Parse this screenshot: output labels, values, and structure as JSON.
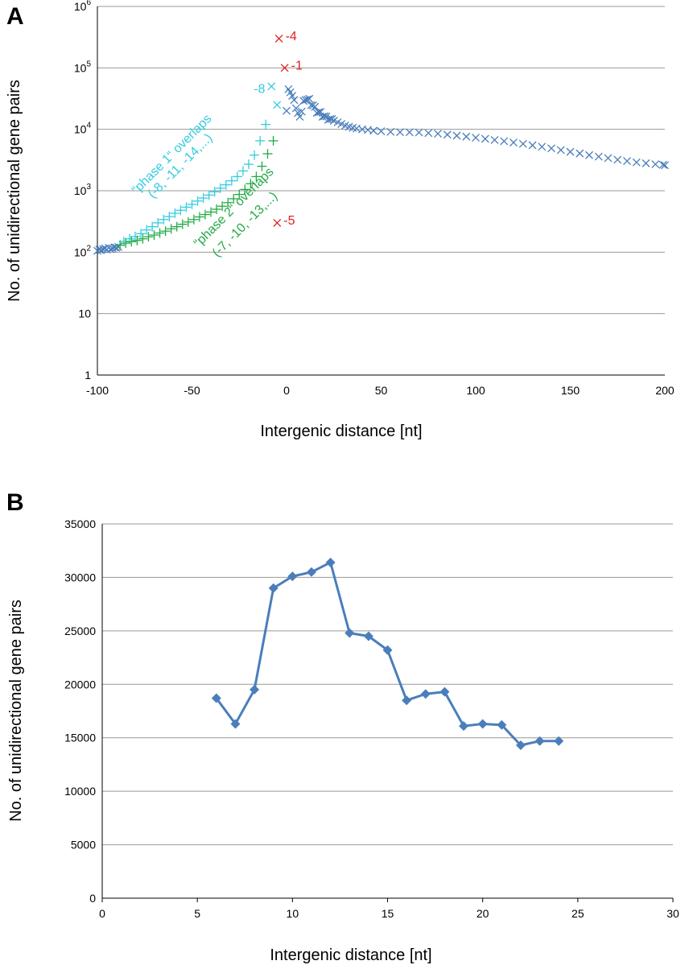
{
  "chart_data": [
    {
      "panel": "A",
      "type": "scatter",
      "y_scale": "log",
      "xlabel": "Intergenic distance [nt]",
      "ylabel": "No. of unidirectional gene pairs",
      "xlim": [
        -100,
        200
      ],
      "ylim": [
        1,
        1000000
      ],
      "x_ticks": [
        "-100",
        "-50",
        "0",
        "50",
        "100",
        "150",
        "200"
      ],
      "y_ticks": [
        {
          "base": "1",
          "exp": ""
        },
        {
          "base": "10",
          "exp": ""
        },
        {
          "base": "10",
          "exp": "2"
        },
        {
          "base": "10",
          "exp": "3"
        },
        {
          "base": "10",
          "exp": "4"
        },
        {
          "base": "10",
          "exp": "5"
        },
        {
          "base": "10",
          "exp": "6"
        }
      ],
      "colors": {
        "main": "#4a7ebb",
        "phase1": "#33ccdd",
        "phase2": "#22aa44",
        "special": "#e02020"
      },
      "series": [
        {
          "name": "main",
          "marker": "x",
          "points": [
            [
              -100,
              105
            ],
            [
              -99,
              110
            ],
            [
              -98,
              108
            ],
            [
              -97,
              112
            ],
            [
              -96,
              115
            ],
            [
              -95,
              110
            ],
            [
              -94,
              118
            ],
            [
              -93,
              112
            ],
            [
              -92,
              115
            ],
            [
              -91,
              120
            ],
            [
              -90,
              118
            ],
            [
              -89,
              122
            ],
            [
              0,
              20000
            ],
            [
              1,
              45000
            ],
            [
              2,
              40000
            ],
            [
              3,
              35000
            ],
            [
              4,
              30000
            ],
            [
              5,
              22000
            ],
            [
              6,
              18500
            ],
            [
              7,
              16000
            ],
            [
              8,
              19500
            ],
            [
              9,
              29000
            ],
            [
              10,
              30000
            ],
            [
              11,
              30500
            ],
            [
              12,
              31400
            ],
            [
              13,
              24700
            ],
            [
              14,
              24500
            ],
            [
              15,
              23200
            ],
            [
              16,
              18500
            ],
            [
              17,
              19000
            ],
            [
              18,
              19200
            ],
            [
              19,
              16000
            ],
            [
              20,
              16300
            ],
            [
              21,
              16200
            ],
            [
              22,
              14300
            ],
            [
              23,
              14700
            ],
            [
              24,
              14700
            ],
            [
              25,
              13800
            ],
            [
              27,
              13000
            ],
            [
              29,
              12200
            ],
            [
              31,
              11500
            ],
            [
              33,
              11000
            ],
            [
              35,
              10600
            ],
            [
              37,
              10300
            ],
            [
              40,
              10000
            ],
            [
              43,
              9800
            ],
            [
              46,
              9500
            ],
            [
              50,
              9300
            ],
            [
              55,
              9100
            ],
            [
              60,
              9000
            ],
            [
              65,
              8950
            ],
            [
              70,
              8900
            ],
            [
              75,
              8700
            ],
            [
              80,
              8500
            ],
            [
              85,
              8200
            ],
            [
              90,
              7900
            ],
            [
              95,
              7600
            ],
            [
              100,
              7300
            ],
            [
              105,
              7000
            ],
            [
              110,
              6700
            ],
            [
              115,
              6400
            ],
            [
              120,
              6100
            ],
            [
              125,
              5800
            ],
            [
              130,
              5500
            ],
            [
              135,
              5200
            ],
            [
              140,
              4900
            ],
            [
              145,
              4600
            ],
            [
              150,
              4300
            ],
            [
              155,
              4050
            ],
            [
              160,
              3800
            ],
            [
              165,
              3600
            ],
            [
              170,
              3400
            ],
            [
              175,
              3200
            ],
            [
              180,
              3050
            ],
            [
              185,
              2900
            ],
            [
              190,
              2800
            ],
            [
              195,
              2700
            ],
            [
              199,
              2650
            ],
            [
              200,
              2600
            ]
          ]
        },
        {
          "name": "phase1",
          "marker": "plus",
          "points": [
            [
              -86,
              150
            ],
            [
              -83,
              165
            ],
            [
              -80,
              180
            ],
            [
              -77,
              200
            ],
            [
              -74,
              230
            ],
            [
              -71,
              260
            ],
            [
              -68,
              300
            ],
            [
              -65,
              340
            ],
            [
              -62,
              380
            ],
            [
              -59,
              430
            ],
            [
              -56,
              480
            ],
            [
              -53,
              540
            ],
            [
              -50,
              600
            ],
            [
              -47,
              680
            ],
            [
              -44,
              760
            ],
            [
              -41,
              850
            ],
            [
              -38,
              960
            ],
            [
              -35,
              1100
            ],
            [
              -32,
              1250
            ],
            [
              -29,
              1450
            ],
            [
              -26,
              1700
            ],
            [
              -23,
              2100
            ],
            [
              -20,
              2700
            ],
            [
              -17,
              3800
            ],
            [
              -14,
              6500
            ],
            [
              -11,
              12000
            ]
          ]
        },
        {
          "name": "phase1-x",
          "marker": "x",
          "points": [
            [
              -8,
              50000
            ],
            [
              -5,
              25000
            ]
          ]
        },
        {
          "name": "phase2",
          "marker": "plus",
          "points": [
            [
              -88,
              130
            ],
            [
              -85,
              140
            ],
            [
              -82,
              148
            ],
            [
              -79,
              155
            ],
            [
              -76,
              165
            ],
            [
              -73,
              178
            ],
            [
              -70,
              190
            ],
            [
              -67,
              205
            ],
            [
              -64,
              220
            ],
            [
              -61,
              240
            ],
            [
              -58,
              260
            ],
            [
              -55,
              285
            ],
            [
              -52,
              310
            ],
            [
              -49,
              340
            ],
            [
              -46,
              375
            ],
            [
              -43,
              410
            ],
            [
              -40,
              450
            ],
            [
              -37,
              500
            ],
            [
              -34,
              560
            ],
            [
              -31,
              640
            ],
            [
              -28,
              740
            ],
            [
              -25,
              870
            ],
            [
              -22,
              1050
            ],
            [
              -19,
              1300
            ],
            [
              -16,
              1700
            ],
            [
              -13,
              2500
            ],
            [
              -10,
              4000
            ],
            [
              -7,
              6500
            ]
          ]
        },
        {
          "name": "special",
          "marker": "x",
          "points": [
            [
              -4,
              300000
            ],
            [
              -1,
              100000
            ],
            [
              -5,
              300
            ]
          ]
        }
      ],
      "annotations": [
        {
          "text": "-4",
          "x": -4,
          "y": 300000,
          "color": "special"
        },
        {
          "text": "-1",
          "x": -1,
          "y": 100000,
          "color": "special"
        },
        {
          "text": "-5",
          "x": -5,
          "y": 300,
          "color": "special"
        },
        {
          "text": "-8",
          "x": -8,
          "y": 50000,
          "color": "phase1"
        }
      ],
      "phase1_label": "“phase 1“ overlaps",
      "phase1_list": "(-8, -11, -14,...)",
      "phase2_label": "“phase 2“ overlaps",
      "phase2_list": "(-7, -10, -13,...)"
    },
    {
      "panel": "B",
      "type": "line",
      "xlabel": "Intergenic distance [nt]",
      "ylabel": "No. of unidirectional gene pairs",
      "xlim": [
        0,
        30
      ],
      "ylim": [
        0,
        35000
      ],
      "x_ticks": [
        "0",
        "5",
        "10",
        "15",
        "20",
        "25",
        "30"
      ],
      "y_ticks": [
        "0",
        "5000",
        "10000",
        "15000",
        "20000",
        "25000",
        "30000",
        "35000"
      ],
      "color": "#4a7ebb",
      "series": [
        {
          "name": "gene pairs",
          "x": [
            6,
            7,
            8,
            9,
            10,
            11,
            12,
            13,
            14,
            15,
            16,
            17,
            18,
            19,
            20,
            21,
            22,
            23,
            24
          ],
          "y": [
            18700,
            16300,
            19500,
            29000,
            30100,
            30500,
            31400,
            24800,
            24500,
            23200,
            18500,
            19100,
            19300,
            16100,
            16300,
            16200,
            14300,
            14700,
            14700
          ]
        }
      ]
    }
  ]
}
